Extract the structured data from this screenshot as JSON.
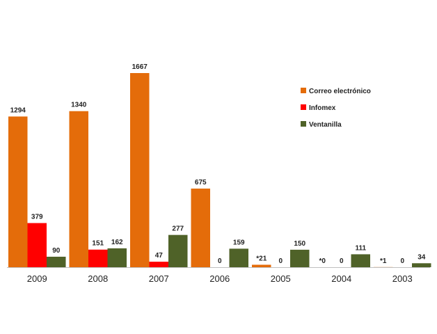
{
  "chart_data": {
    "type": "bar",
    "categories": [
      "2009",
      "2008",
      "2007",
      "2006",
      "2005",
      "2004",
      "2003"
    ],
    "series": [
      {
        "name": "Correo electrónico",
        "color": "#E46C0A",
        "values": [
          1294,
          1340,
          1667,
          675,
          21,
          0,
          1
        ],
        "labels": [
          "1294",
          "1340",
          "1667",
          "675",
          "*21",
          "*0",
          "*1"
        ]
      },
      {
        "name": "Infomex",
        "color": "#FF0000",
        "values": [
          379,
          151,
          47,
          0,
          0,
          0,
          0
        ],
        "labels": [
          "379",
          "151",
          "47",
          "0",
          "0",
          "0",
          "0"
        ]
      },
      {
        "name": "Ventanilla",
        "color": "#4F6228",
        "values": [
          90,
          162,
          277,
          159,
          150,
          111,
          34
        ],
        "labels": [
          "90",
          "162",
          "277",
          "159",
          "150",
          "111",
          "34"
        ]
      }
    ],
    "title": "",
    "xlabel": "",
    "ylabel": "",
    "ylim": [
      0,
      1700
    ],
    "grid": false,
    "legend_position": "top-right"
  }
}
